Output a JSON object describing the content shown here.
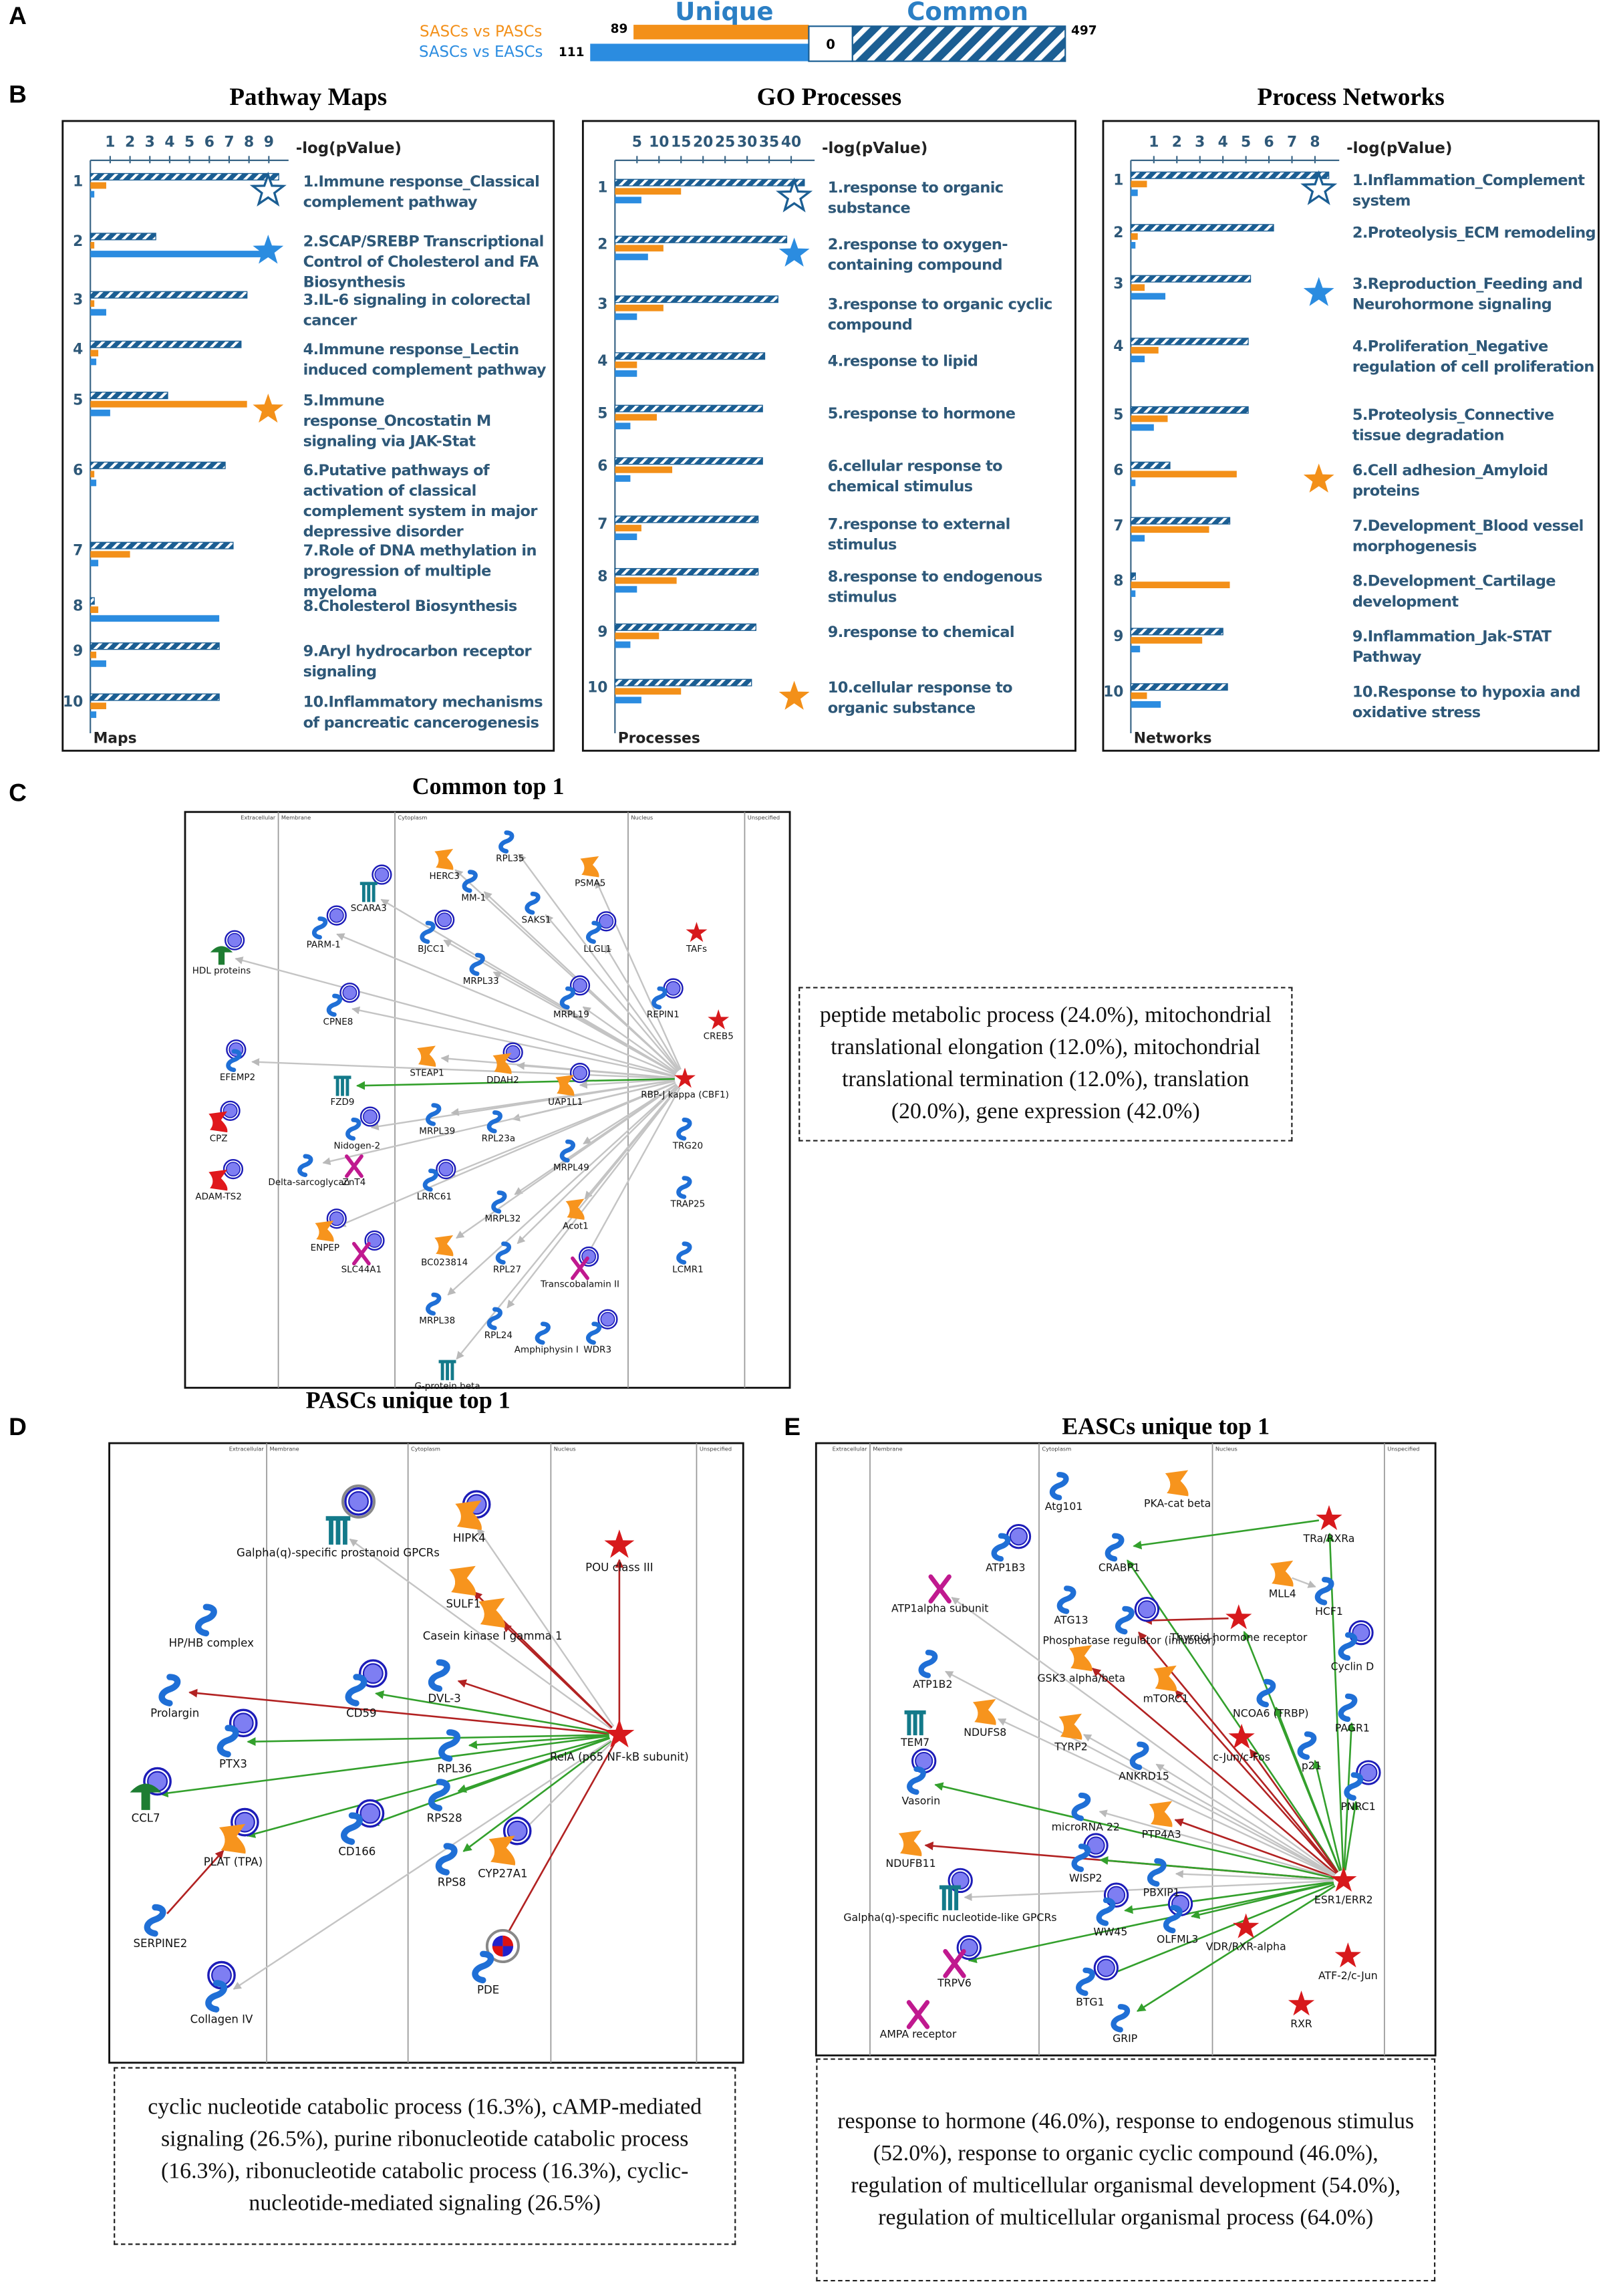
{
  "panel_a": {
    "label": "A",
    "unique_title": "Unique",
    "common_title": "Common",
    "comparisons": [
      {
        "name": "SASCs vs PASCs",
        "color": "#f39019",
        "unique": 89
      },
      {
        "name": "SASCs vs EASCs",
        "color": "#2b8ce0",
        "unique": 111
      }
    ],
    "shared_unique": 0,
    "common": 497,
    "common_color": "#1b5e93"
  },
  "panel_b_label": "B",
  "chart_data": [
    {
      "type": "bar",
      "orientation": "horizontal",
      "title": "Pathway Maps",
      "x_label": "-log(pValue)",
      "corner_label": "Maps",
      "categories": [
        "1",
        "2",
        "3",
        "4",
        "5",
        "6",
        "7",
        "8",
        "9",
        "10"
      ],
      "labels": [
        "1.Immune response_Classical complement pathway",
        "2.SCAP/SREBP Transcriptional Control of Cholesterol and FA Biosynthesis",
        "3.IL-6 signaling in colorectal cancer",
        "4.Immune response_Lectin induced complement pathway",
        "5.Immune response_Oncostatin M signaling via JAK-Stat",
        "6.Putative pathways of activation of classical complement system in major depressive disorder",
        "7.Role of DNA methylation in progression of multiple myeloma",
        "8.Cholesterol Biosynthesis",
        "9.Aryl hydrocarbon receptor signaling",
        "10.Inflammatory mechanisms of pancreatic cancerogenesis"
      ],
      "xlim": [
        0,
        9.7
      ],
      "xticks": [
        1,
        2,
        3,
        4,
        5,
        6,
        7,
        8,
        9
      ],
      "series": [
        {
          "color": "#1b5e93",
          "pattern": "hatched",
          "highlight": "1",
          "values": [
            9.5,
            3.3,
            7.9,
            7.6,
            3.9,
            6.8,
            7.2,
            0.2,
            6.5,
            6.5
          ]
        },
        {
          "color": "#f39019",
          "pattern": "solid",
          "highlight": "5",
          "values": [
            0.8,
            0.2,
            0.2,
            0.4,
            7.9,
            0.2,
            2.0,
            0.4,
            0.3,
            0.8
          ]
        },
        {
          "color": "#2b8ce0",
          "pattern": "solid",
          "highlight": "2",
          "values": [
            0.2,
            9.0,
            0.8,
            0.3,
            1.0,
            0.3,
            0.4,
            6.5,
            0.8,
            0.3
          ]
        }
      ]
    },
    {
      "type": "bar",
      "orientation": "horizontal",
      "title": "GO Processes",
      "x_label": "-log(pValue)",
      "corner_label": "Processes",
      "categories": [
        "1",
        "2",
        "3",
        "4",
        "5",
        "6",
        "7",
        "8",
        "9",
        "10"
      ],
      "labels": [
        "1.response to organic substance",
        "2.response to oxygen-containing compound",
        "3.response to organic cyclic compound",
        "4.response to lipid",
        "5.response to hormone",
        "6.cellular response to chemical stimulus",
        "7.response to external stimulus",
        "8.response to endogenous stimulus",
        "9.response to chemical",
        "10.cellular response to organic substance"
      ],
      "xlim": [
        0,
        44
      ],
      "xticks": [
        5,
        10,
        15,
        20,
        25,
        30,
        35,
        40
      ],
      "series": [
        {
          "color": "#1b5e93",
          "pattern": "hatched",
          "highlight": "1",
          "values": [
            43,
            39,
            37,
            34,
            33.5,
            33.5,
            32.5,
            32.5,
            32,
            31
          ]
        },
        {
          "color": "#f39019",
          "pattern": "solid",
          "highlight": "10",
          "values": [
            15,
            11,
            11,
            5,
            9.5,
            13,
            6,
            14,
            10,
            15
          ]
        },
        {
          "color": "#2b8ce0",
          "pattern": "solid",
          "highlight": "2",
          "values": [
            6,
            7.5,
            5,
            5,
            3.5,
            3.5,
            5,
            5,
            3.5,
            6
          ]
        }
      ]
    },
    {
      "type": "bar",
      "orientation": "horizontal",
      "title": "Process Networks",
      "x_label": "-log(pValue)",
      "corner_label": "Networks",
      "categories": [
        "1",
        "2",
        "3",
        "4",
        "5",
        "6",
        "7",
        "8",
        "9",
        "10"
      ],
      "labels": [
        "1.Inflammation_Complement system",
        "2.Proteolysis_ECM remodeling",
        "3.Reproduction_Feeding and Neurohormone signaling",
        "4.Proliferation_Negative regulation of cell proliferation",
        "5.Proteolysis_Connective tissue degradation",
        "6.Cell adhesion_Amyloid proteins",
        "7.Development_Blood vessel morphogenesis",
        "8.Development_Cartilage development",
        "9.Inflammation_Jak-STAT Pathway",
        "10.Response to hypoxia and oxidative stress"
      ],
      "xlim": [
        0,
        8.8
      ],
      "xticks": [
        1,
        2,
        3,
        4,
        5,
        6,
        7,
        8
      ],
      "series": [
        {
          "color": "#1b5e93",
          "pattern": "hatched",
          "highlight": "1",
          "values": [
            8.6,
            6.2,
            5.2,
            5.1,
            5.1,
            1.7,
            4.3,
            0.2,
            4.0,
            4.2
          ]
        },
        {
          "color": "#f39019",
          "pattern": "solid",
          "highlight": "6",
          "values": [
            0.7,
            0.3,
            0.6,
            1.2,
            1.6,
            4.6,
            3.4,
            4.3,
            3.1,
            0.7
          ]
        },
        {
          "color": "#2b8ce0",
          "pattern": "solid",
          "highlight": "3",
          "values": [
            0.3,
            0.2,
            1.5,
            0.6,
            1.0,
            0.2,
            0.6,
            0.2,
            0.4,
            1.3
          ]
        }
      ]
    }
  ],
  "networks": [
    {
      "label": "C",
      "title": "Common top 1",
      "compartments": [
        "Extracellular",
        "Membrane",
        "Cytoplasm",
        "Nucleus",
        "Unspecified"
      ],
      "nodes": [
        "HERC3",
        "RPL35",
        "PSMA5",
        "SCARA3",
        "MM-1",
        "SAKS1",
        "LLGL1",
        "TAFs",
        "PARM-1",
        "BJCC1",
        "MRPL33",
        "MRPL19",
        "REPIN1",
        "CREB5",
        "HDL proteins",
        "CPNE8",
        "STEAP1",
        "DDAH2",
        "UAP1L1",
        "RBP-J kappa (CBF1)",
        "EFEMP2",
        "FZD9",
        "CPZ",
        "Nidogen-2",
        "MRPL39",
        "RPL23a",
        "TRG20",
        "Delta-sarcoglycan",
        "ZnT4",
        "LRRC61",
        "MRPL49",
        "ADAM-TS2",
        "MRPL32",
        "Acot1",
        "TRAP25",
        "ENPEP",
        "BC023814",
        "RPL27",
        "SLC44A1",
        "Transcobalamin II",
        "LCMR1",
        "MRPL38",
        "RPL24",
        "Amphiphysin I",
        "WDR3",
        "G-protein beta"
      ],
      "summary": "peptide metabolic process (24.0%), mitochondrial translational elongation (12.0%), mitochondrial translational termination (12.0%), translation (20.0%), gene expression (42.0%)"
    },
    {
      "label": "D",
      "title": "PASCs unique top 1",
      "compartments": [
        "Extracellular",
        "Membrane",
        "Cytoplasm",
        "Nucleus",
        "Unspecified"
      ],
      "nodes": [
        "Galpha(q)-specific prostanoid GPCRs",
        "HIPK4",
        "SULF1",
        "POU class III",
        "HP/HB complex",
        "Casein kinase I gamma 1",
        "DVL-3",
        "RelA (p65 NF-kB subunit)",
        "Prolargin",
        "PTX3",
        "CD59",
        "RPL36",
        "RPS28",
        "CCL7",
        "PLAT (TPA)",
        "CD166",
        "RPS8",
        "CYP27A1",
        "SERPINE2",
        "Collagen IV",
        "PDE"
      ],
      "summary": "cyclic nucleotide catabolic process (16.3%), cAMP-mediated signaling (26.5%), purine ribonucleotide catabolic process (16.3%), ribonucleotide catabolic process (16.3%), cyclic-nucleotide-mediated signaling (26.5%)"
    },
    {
      "label": "E",
      "title": "EASCs unique top 1",
      "compartments": [
        "Extracellular",
        "Membrane",
        "Cytoplasm",
        "Nucleus",
        "Unspecified"
      ],
      "nodes": [
        "Atg101",
        "PKA-cat beta",
        "TRa/RXRa",
        "ATP1B3",
        "CRABP1",
        "MLL4",
        "HCF1",
        "ATP1alpha subunit",
        "ATG13",
        "Phosphatase regulator (inhibitor)",
        "Thyroid hormone receptor",
        "Cyclin D",
        "ATP1B2",
        "GSK3 alpha/beta",
        "mTORC1",
        "NCOA6 (TRBP)",
        "TEM7",
        "NDUFS8",
        "TYRP2",
        "ANKRD15",
        "c-Jun/c-Fos",
        "p21",
        "PAGR1",
        "PNRC1",
        "Vasorin",
        "microRNA 22",
        "PTP4A3",
        "NDUFB11",
        "ESR1/ERR2",
        "WISP2",
        "PBXIP1",
        "Galpha(q)-specific nucleotide-like GPCRs",
        "WW45",
        "OLFML3",
        "VDR/RXR-alpha",
        "ATF-2/c-Jun",
        "TRPV6",
        "BTG1",
        "RXR",
        "AMPA receptor",
        "GRIP"
      ],
      "summary": "response to hormone (46.0%), response to endogenous stimulus (52.0%), response to organic cyclic compound (46.0%), regulation of multicellular organismal development (54.0%), regulation of multicellular organismal process (64.0%)"
    }
  ]
}
